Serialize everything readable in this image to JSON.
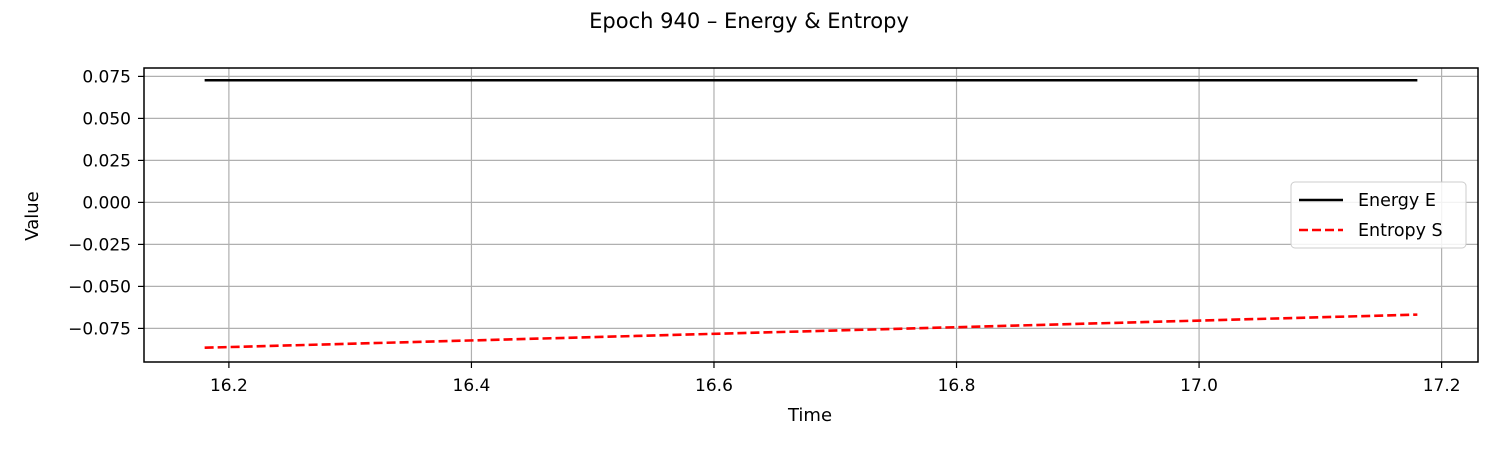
{
  "chart_data": {
    "type": "line",
    "title": "Epoch 940 – Energy & Entropy",
    "xlabel": "Time",
    "ylabel": "Value",
    "xlim": [
      16.13,
      17.23
    ],
    "ylim": [
      -0.095,
      0.08
    ],
    "x_ticks": [
      16.2,
      16.4,
      16.6,
      16.8,
      17.0,
      17.2
    ],
    "x_tick_labels": [
      "16.2",
      "16.4",
      "16.6",
      "16.8",
      "17.0",
      "17.2"
    ],
    "y_ticks": [
      0.075,
      0.05,
      0.025,
      0.0,
      -0.025,
      -0.05,
      -0.075
    ],
    "y_tick_labels": [
      "0.075",
      "0.050",
      "0.025",
      "0.000",
      "−0.025",
      "−0.050",
      "−0.075"
    ],
    "grid": true,
    "legend_position": "right",
    "series": [
      {
        "name": "Energy E",
        "color": "#000000",
        "style": "solid",
        "x": [
          16.18,
          17.18
        ],
        "y": [
          0.0727,
          0.0727
        ]
      },
      {
        "name": "Entropy S",
        "color": "#ff0000",
        "style": "dashed",
        "x": [
          16.18,
          17.18
        ],
        "y": [
          -0.0865,
          -0.0668
        ]
      }
    ]
  }
}
